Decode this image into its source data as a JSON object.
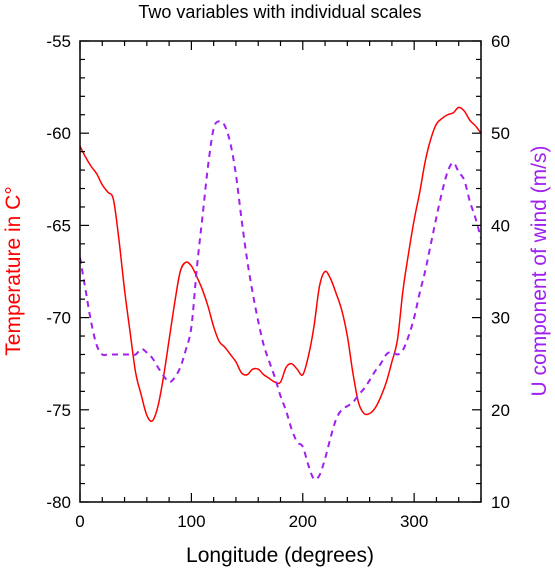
{
  "chart_data": {
    "type": "line",
    "title": "Two variables with individual scales",
    "xlabel": "Longitude (degrees)",
    "ylabel_left": "Temperature in C°",
    "ylabel_right": "U component of wind (m/s)",
    "xlim": [
      0,
      360
    ],
    "ylim_left": [
      -80,
      -55
    ],
    "ylim_right": [
      10,
      60
    ],
    "x_ticks": [
      0,
      100,
      200,
      300
    ],
    "y_ticks_left": [
      -80,
      -75,
      -70,
      -65,
      -60,
      -55
    ],
    "y_ticks_right": [
      10,
      20,
      30,
      40,
      50,
      60
    ],
    "grid": false,
    "colors": {
      "temperature": "#ff0000",
      "wind": "#a020f0"
    },
    "series": [
      {
        "axis": "left",
        "style": "solid",
        "color": "#ff0000",
        "x": [
          0,
          5,
          10,
          15,
          20,
          25,
          30,
          35,
          40,
          45,
          50,
          55,
          60,
          65,
          70,
          75,
          80,
          85,
          90,
          95,
          100,
          105,
          110,
          115,
          120,
          125,
          130,
          135,
          140,
          145,
          150,
          155,
          160,
          165,
          170,
          175,
          180,
          185,
          190,
          195,
          200,
          205,
          210,
          215,
          220,
          225,
          230,
          235,
          240,
          245,
          250,
          255,
          260,
          265,
          270,
          275,
          280,
          285,
          290,
          295,
          300,
          305,
          310,
          315,
          320,
          325,
          330,
          335,
          340,
          345,
          350,
          355,
          360
        ],
        "values": [
          -60.7,
          -61.3,
          -61.8,
          -62.2,
          -62.8,
          -63.2,
          -63.6,
          -65.8,
          -68.5,
          -70.8,
          -73.0,
          -74.2,
          -75.3,
          -75.6,
          -74.8,
          -73.2,
          -71.2,
          -69.2,
          -67.5,
          -67.0,
          -67.2,
          -67.8,
          -68.5,
          -69.4,
          -70.5,
          -71.3,
          -71.6,
          -72.0,
          -72.4,
          -73.0,
          -73.1,
          -72.8,
          -72.8,
          -73.1,
          -73.3,
          -73.5,
          -73.5,
          -72.7,
          -72.5,
          -72.8,
          -73.1,
          -72.1,
          -70.5,
          -68.3,
          -67.5,
          -67.9,
          -68.7,
          -69.6,
          -71.0,
          -73.0,
          -74.6,
          -75.2,
          -75.2,
          -74.9,
          -74.3,
          -73.5,
          -72.4,
          -71.2,
          -68.5,
          -66.5,
          -64.7,
          -63.2,
          -61.5,
          -60.3,
          -59.5,
          -59.2,
          -59.0,
          -58.9,
          -58.6,
          -58.8,
          -59.3,
          -59.6,
          -60.0
        ]
      },
      {
        "axis": "right",
        "style": "dashed",
        "color": "#a020f0",
        "x": [
          0,
          5,
          10,
          15,
          20,
          25,
          30,
          35,
          40,
          45,
          50,
          55,
          60,
          65,
          70,
          75,
          80,
          85,
          90,
          95,
          100,
          105,
          110,
          115,
          120,
          125,
          130,
          135,
          140,
          145,
          150,
          155,
          160,
          165,
          170,
          175,
          180,
          185,
          190,
          195,
          200,
          205,
          210,
          215,
          220,
          225,
          230,
          235,
          240,
          245,
          250,
          255,
          260,
          265,
          270,
          275,
          280,
          285,
          290,
          295,
          300,
          305,
          310,
          315,
          320,
          325,
          330,
          335,
          340,
          345,
          350,
          355,
          360
        ],
        "values": [
          36.5,
          33.0,
          29.5,
          27.0,
          26.0,
          26.0,
          26.0,
          26.0,
          26.0,
          26.0,
          26.0,
          26.6,
          26.2,
          25.6,
          24.6,
          23.7,
          23.0,
          23.5,
          24.6,
          26.5,
          29.0,
          35.5,
          41.0,
          46.5,
          50.5,
          51.3,
          50.8,
          48.9,
          45.5,
          40.7,
          36.3,
          32.7,
          29.6,
          27.0,
          25.2,
          23.5,
          21.5,
          19.9,
          17.9,
          16.5,
          16.0,
          14.0,
          12.5,
          12.9,
          14.7,
          17.0,
          19.0,
          20.0,
          20.4,
          20.8,
          21.6,
          22.3,
          23.2,
          24.2,
          25.0,
          26.0,
          26.3,
          26.0,
          26.5,
          28.0,
          30.0,
          32.7,
          35.1,
          38.0,
          40.9,
          43.6,
          45.8,
          46.8,
          45.8,
          44.9,
          42.6,
          40.8,
          38.6
        ]
      }
    ]
  }
}
